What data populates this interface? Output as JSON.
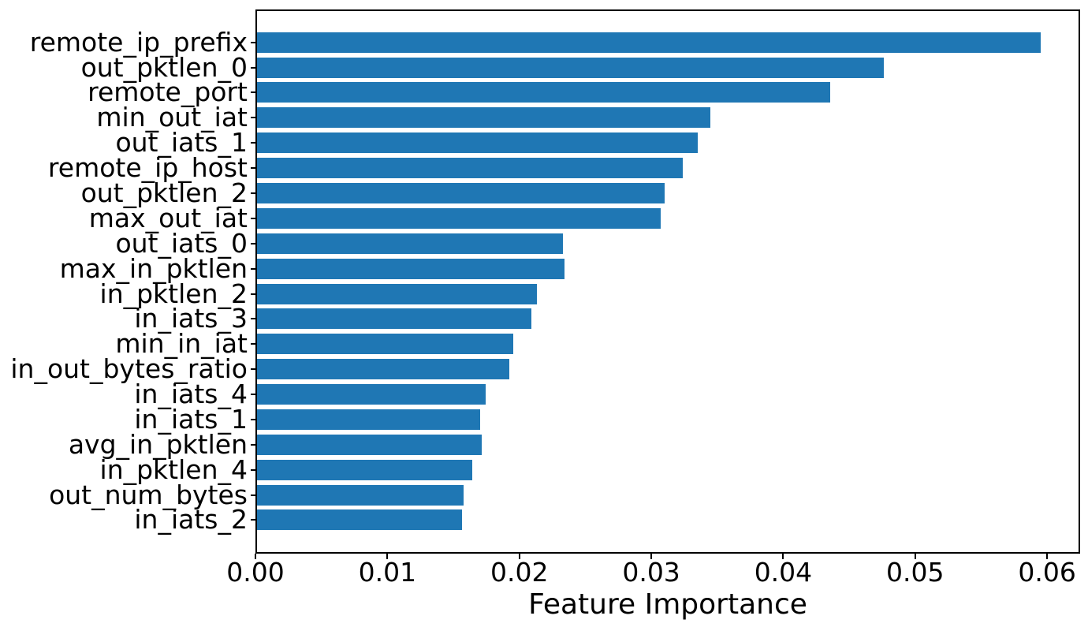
{
  "figure": {
    "background": "#ffffff"
  },
  "chart_data": {
    "type": "bar",
    "orientation": "horizontal",
    "title": "",
    "xlabel": "Feature Importance",
    "ylabel": "",
    "grid": false,
    "legend": null,
    "bar_color": "#1f77b4",
    "axis_color": "#000000",
    "xlim": [
      0,
      0.0625
    ],
    "xtick_values": [
      0.0,
      0.01,
      0.02,
      0.03,
      0.04,
      0.05,
      0.06
    ],
    "xtick_labels": [
      "0.00",
      "0.01",
      "0.02",
      "0.03",
      "0.04",
      "0.05",
      "0.06"
    ],
    "categories": [
      "remote_ip_prefix",
      "out_pktlen_0",
      "remote_port",
      "min_out_iat",
      "out_iats_1",
      "remote_ip_host",
      "out_pktlen_2",
      "max_out_iat",
      "out_iats_0",
      "max_in_pktlen",
      "in_pktlen_2",
      "in_iats_3",
      "min_in_iat",
      "in_out_bytes_ratio",
      "in_iats_4",
      "in_iats_1",
      "avg_in_pktlen",
      "in_pktlen_4",
      "out_num_bytes",
      "in_iats_2"
    ],
    "values": [
      0.0596,
      0.0477,
      0.0436,
      0.0345,
      0.0335,
      0.0324,
      0.031,
      0.0307,
      0.0233,
      0.0234,
      0.0213,
      0.0209,
      0.0195,
      0.0192,
      0.0174,
      0.017,
      0.0171,
      0.0164,
      0.0157,
      0.0156
    ]
  }
}
